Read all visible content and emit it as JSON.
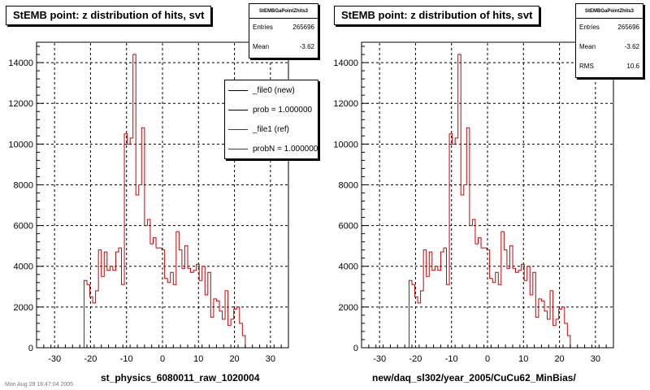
{
  "pads": [
    {
      "title": "StEMB point: z distribution of hits, svt",
      "xtitle": "st_physics_6080011_raw_1020004",
      "stats": {
        "name": "StEMBGaPointZhits3",
        "rows": [
          {
            "label": "Entries",
            "value": "265696"
          },
          {
            "label": "Mean",
            "value": "-3.62"
          }
        ]
      },
      "legend": [
        {
          "label": "_file0 (new)",
          "color": "#000000"
        },
        {
          "label": "prob = 1.000000",
          "color": "#000000"
        },
        {
          "label": "_file1 (ref)",
          "color": "#cc0000"
        },
        {
          "label": "probN = 1.000000",
          "color": "#cc0000"
        }
      ]
    },
    {
      "title": "StEMB point: z distribution of hits, svt",
      "xtitle": "new/daq_sl302/year_2005/CuCu62_MinBias/",
      "stats": {
        "name": "StEMBGaPointZhits3",
        "rows": [
          {
            "label": "Entries",
            "value": "265696"
          },
          {
            "label": "Mean",
            "value": "-3.62"
          },
          {
            "label": "RMS",
            "value": "10.6"
          }
        ]
      },
      "legend": []
    }
  ],
  "chart_data": {
    "type": "histogram",
    "title": "StEMB point: z distribution of hits, svt",
    "xlim": [
      -35,
      35
    ],
    "ylim": [
      0,
      15000
    ],
    "xticks": [
      -30,
      -20,
      -10,
      0,
      10,
      20,
      30
    ],
    "yticks": [
      0,
      2000,
      4000,
      6000,
      8000,
      10000,
      12000,
      14000
    ],
    "grid": true,
    "line_color": "#cc0000",
    "bin_edges": [
      -34.6,
      -33.8,
      -33.0,
      -32.2,
      -31.4,
      -30.6,
      -29.8,
      -29.0,
      -28.2,
      -27.4,
      -26.6,
      -25.8,
      -25.0,
      -24.2,
      -23.4,
      -22.6,
      -21.8,
      -21.0,
      -20.2,
      -19.4,
      -18.6,
      -17.8,
      -17.0,
      -16.2,
      -15.4,
      -14.6,
      -13.8,
      -13.0,
      -12.2,
      -11.4,
      -10.6,
      -9.8,
      -9.0,
      -8.2,
      -7.4,
      -6.6,
      -5.8,
      -5.0,
      -4.2,
      -3.4,
      -2.6,
      -1.8,
      -1.0,
      -0.2,
      0.6,
      1.4,
      2.2,
      3.0,
      3.8,
      4.6,
      5.4,
      6.2,
      7.0,
      7.8,
      8.6,
      9.4,
      10.2,
      11.0,
      11.8,
      12.6,
      13.4,
      14.2,
      15.0,
      15.8,
      16.6,
      17.4,
      18.2,
      19.0,
      19.8,
      20.6,
      21.4,
      22.2,
      23.0,
      23.8,
      24.6,
      25.4,
      26.2,
      27.0,
      27.8,
      28.6,
      29.4,
      30.2,
      31.0,
      31.8,
      32.6,
      33.4,
      34.2,
      35.0
    ],
    "counts": [
      0,
      0,
      0,
      0,
      0,
      0,
      0,
      0,
      0,
      0,
      0,
      0,
      0,
      0,
      0,
      0,
      3300,
      3100,
      2500,
      2200,
      2800,
      4800,
      3500,
      4700,
      3800,
      4000,
      3800,
      4700,
      4900,
      3100,
      10500,
      10000,
      10300,
      14400,
      7500,
      8000,
      10800,
      6000,
      6300,
      5100,
      5400,
      4900,
      4900,
      4800,
      3400,
      3200,
      3700,
      3100,
      5700,
      4800,
      3900,
      5000,
      3900,
      3700,
      3800,
      4100,
      3300,
      4000,
      2600,
      3700,
      1500,
      2400,
      2300,
      1800,
      1400,
      2800,
      1100,
      1400,
      1900,
      2000,
      1200,
      600,
      0,
      0,
      0,
      0,
      0,
      0,
      0,
      0,
      0,
      0,
      0,
      0,
      0,
      0,
      0
    ]
  },
  "footer": "Mon Aug 29 16:47:04 2005"
}
